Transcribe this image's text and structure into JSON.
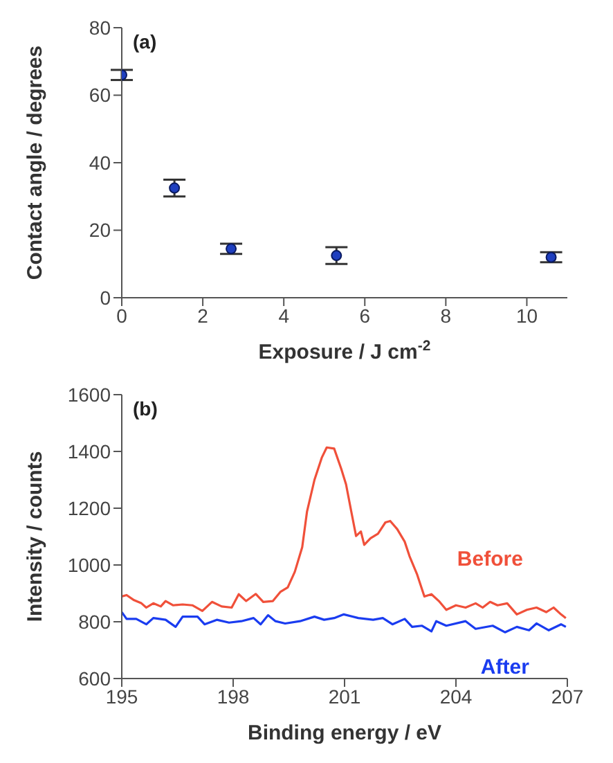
{
  "chart_data": [
    {
      "type": "scatter",
      "xlabel": "Exposure / J cm$^{-2}$",
      "ylabel": "Contact angle / degrees",
      "annotations": [
        "(a)"
      ],
      "x": [
        0,
        1.3,
        2.7,
        5.3,
        10.6
      ],
      "series": [
        {
          "color": "#1f3fbf",
          "values": [
            66,
            32.5,
            14.5,
            12.5,
            12
          ],
          "errors": [
            1.5,
            2.5,
            1.5,
            2.5,
            1.5
          ]
        }
      ],
      "xlim": [
        0,
        11
      ],
      "xticks": [
        0,
        2,
        4,
        6,
        8,
        10
      ],
      "ylim": [
        0,
        80
      ],
      "yticks": [
        0,
        20,
        40,
        60,
        80
      ],
      "marker": "circle",
      "grid": false,
      "legend": false
    },
    {
      "type": "line",
      "xlabel": "Binding energy / eV",
      "ylabel": "Intensity / counts",
      "annotations": [
        "(b)"
      ],
      "series": [
        {
          "name": "Before",
          "color": "#f0503a",
          "x": [
            195,
            195.13,
            195.33,
            195.53,
            195.66,
            195.85,
            196.05,
            196.18,
            196.38,
            196.64,
            196.9,
            197.17,
            197.43,
            197.69,
            197.96,
            198.15,
            198.35,
            198.61,
            198.81,
            199.07,
            199.27,
            199.47,
            199.66,
            199.86,
            199.99,
            200.19,
            200.39,
            200.52,
            200.72,
            200.91,
            201.04,
            201.18,
            201.31,
            201.44,
            201.53,
            201.7,
            201.9,
            202.1,
            202.23,
            202.42,
            202.62,
            202.75,
            202.95,
            203.15,
            203.34,
            203.54,
            203.74,
            204,
            204.26,
            204.53,
            204.72,
            204.92,
            205.12,
            205.38,
            205.64,
            205.91,
            206.17,
            206.43,
            206.63,
            206.83,
            206.96
          ],
          "values": [
            889,
            894,
            876,
            865,
            850,
            865,
            854,
            873,
            858,
            861,
            858,
            838,
            870,
            854,
            850,
            897,
            873,
            898,
            870,
            873,
            905,
            921,
            976,
            1063,
            1189,
            1300,
            1379,
            1414,
            1410,
            1339,
            1284,
            1189,
            1102,
            1118,
            1071,
            1094,
            1110,
            1150,
            1155,
            1126,
            1082,
            1031,
            968,
            889,
            897,
            873,
            842,
            858,
            850,
            865,
            850,
            870,
            858,
            865,
            826,
            842,
            850,
            834,
            850,
            826,
            813
          ]
        },
        {
          "name": "After",
          "color": "#1a3cf0",
          "x": [
            195,
            195.13,
            195.39,
            195.66,
            195.85,
            196.18,
            196.45,
            196.64,
            197.04,
            197.23,
            197.56,
            197.89,
            198.22,
            198.55,
            198.74,
            198.94,
            199.14,
            199.4,
            199.8,
            200.19,
            200.45,
            200.72,
            200.98,
            201.37,
            201.77,
            202.03,
            202.29,
            202.62,
            202.82,
            203.08,
            203.34,
            203.47,
            203.74,
            204.26,
            204.53,
            204.99,
            205.32,
            205.64,
            205.97,
            206.17,
            206.5,
            206.83,
            206.96
          ],
          "values": [
            834,
            810,
            810,
            791,
            813,
            807,
            782,
            818,
            818,
            791,
            807,
            797,
            802,
            813,
            791,
            823,
            802,
            794,
            802,
            818,
            807,
            813,
            826,
            813,
            807,
            813,
            791,
            810,
            782,
            786,
            766,
            802,
            786,
            802,
            775,
            786,
            763,
            782,
            770,
            794,
            770,
            791,
            782
          ]
        }
      ],
      "xlim": [
        195,
        207
      ],
      "xticks": [
        195,
        198,
        201,
        204,
        207
      ],
      "ylim": [
        600,
        1600
      ],
      "yticks": [
        600,
        800,
        1000,
        1200,
        1400,
        1600
      ],
      "marker": "none",
      "line_style": "solid",
      "grid": false,
      "legend": false
    }
  ]
}
